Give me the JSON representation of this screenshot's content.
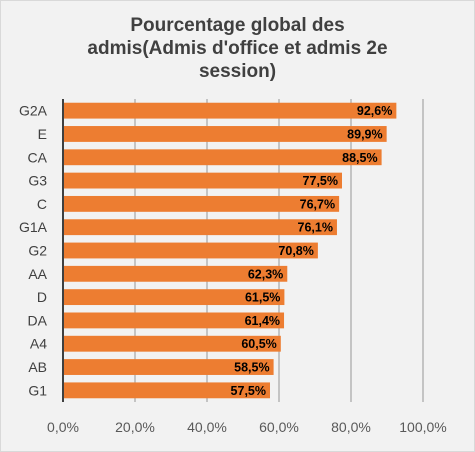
{
  "chart_data": {
    "type": "bar",
    "orientation": "horizontal",
    "title": "Pourcentage global des\nadmis(Admis d'office et admis 2e\nsession)",
    "categories": [
      "G2A",
      "E",
      "CA",
      "G3",
      "C",
      "G1A",
      "G2",
      "AA",
      "D",
      "DA",
      "A4",
      "AB",
      "G1"
    ],
    "values": [
      92.6,
      89.9,
      88.5,
      77.5,
      76.7,
      76.1,
      70.8,
      62.3,
      61.5,
      61.4,
      60.5,
      58.5,
      57.5
    ],
    "data_labels": [
      "92,6%",
      "89,9%",
      "88,5%",
      "77,5%",
      "76,7%",
      "76,1%",
      "70,8%",
      "62,3%",
      "61,5%",
      "61,4%",
      "60,5%",
      "58,5%",
      "57,5%"
    ],
    "xlim": [
      0,
      100
    ],
    "x_ticks": [
      0,
      20,
      40,
      60,
      80,
      100
    ],
    "x_tick_labels": [
      "0,0%",
      "20,0%",
      "40,0%",
      "60,0%",
      "80,0%",
      "100,0%"
    ],
    "xlabel": "",
    "ylabel": "",
    "grid": "vertical",
    "legend": "none",
    "bar_color": "#ed7d31",
    "grid_color": "#a6a6a6"
  }
}
